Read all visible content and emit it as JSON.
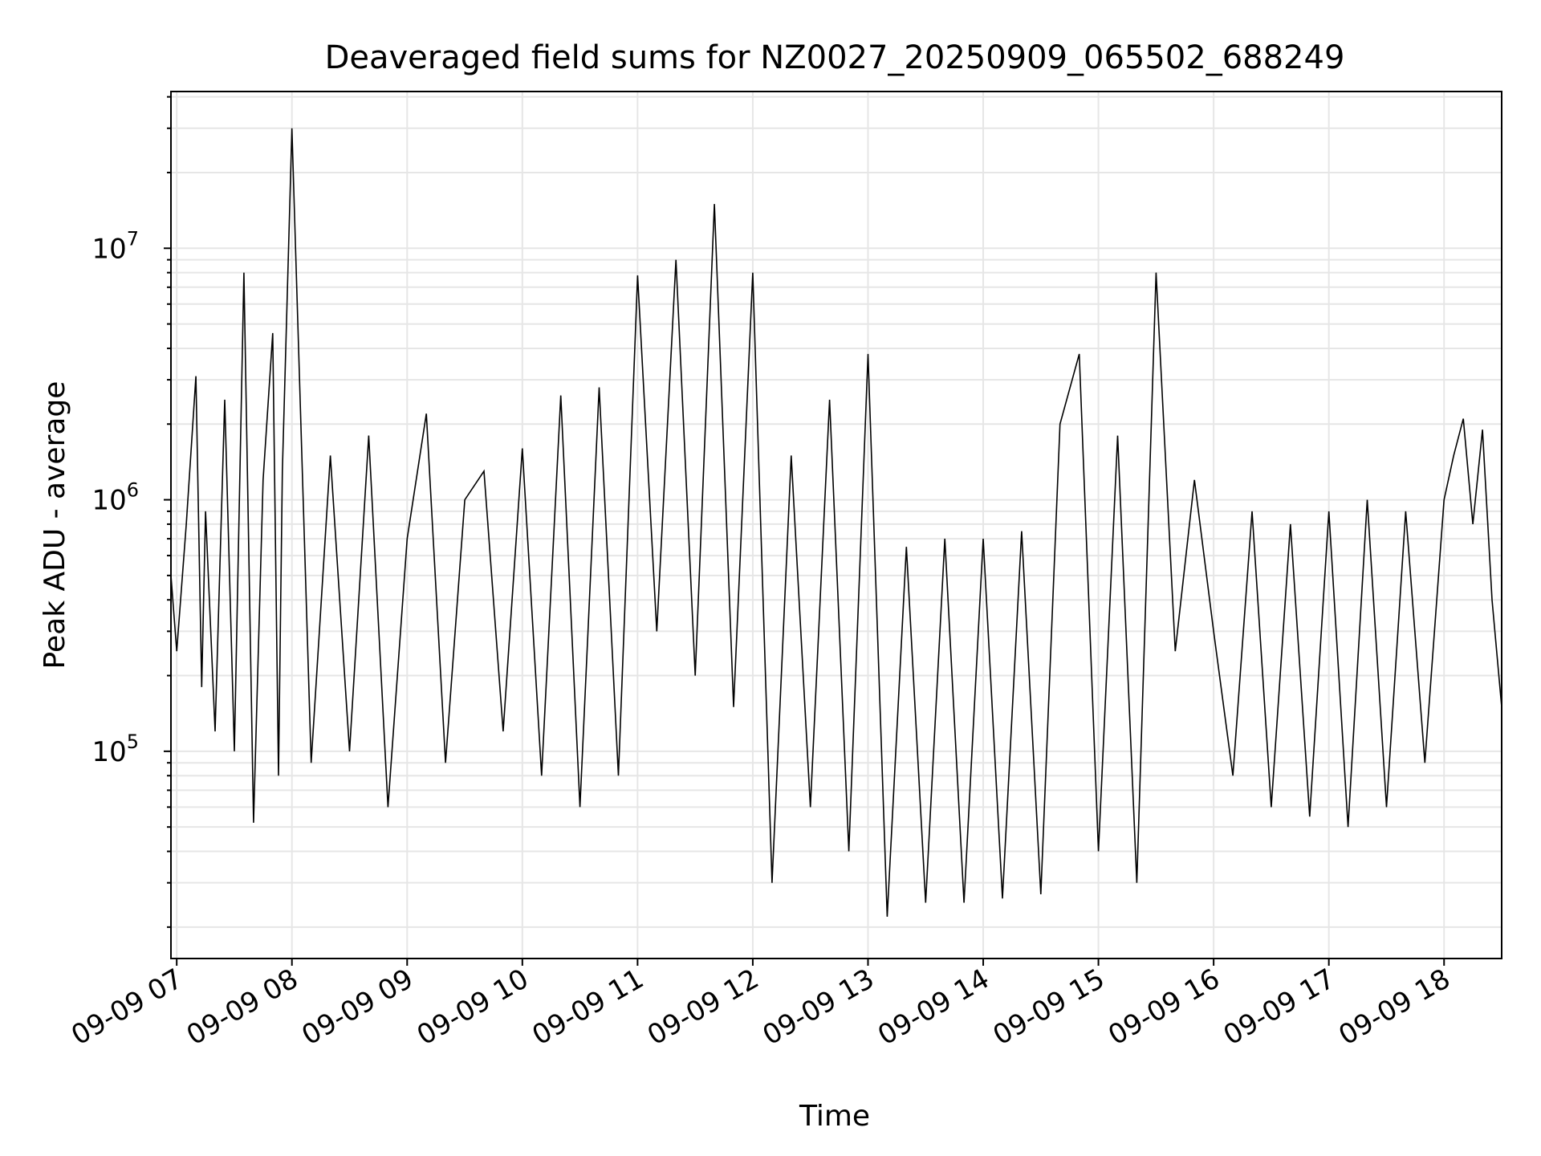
{
  "chart_data": {
    "type": "line",
    "title": "Deaveraged field sums for NZ0027_20250909_065502_688249",
    "xlabel": "Time",
    "ylabel": "Peak ADU - average",
    "yscale": "log",
    "ylim": [
      15000,
      42000000
    ],
    "xlim": [
      "2025-09-09 06:57",
      "2025-09-09 18:30"
    ],
    "grid": true,
    "line_color": "#000000",
    "x_ticks": [
      {
        "label": "09-09 07",
        "value": "2025-09-09 07:00"
      },
      {
        "label": "09-09 08",
        "value": "2025-09-09 08:00"
      },
      {
        "label": "09-09 09",
        "value": "2025-09-09 09:00"
      },
      {
        "label": "09-09 10",
        "value": "2025-09-09 10:00"
      },
      {
        "label": "09-09 11",
        "value": "2025-09-09 11:00"
      },
      {
        "label": "09-09 12",
        "value": "2025-09-09 12:00"
      },
      {
        "label": "09-09 13",
        "value": "2025-09-09 13:00"
      },
      {
        "label": "09-09 14",
        "value": "2025-09-09 14:00"
      },
      {
        "label": "09-09 15",
        "value": "2025-09-09 15:00"
      },
      {
        "label": "09-09 16",
        "value": "2025-09-09 16:00"
      },
      {
        "label": "09-09 17",
        "value": "2025-09-09 17:00"
      },
      {
        "label": "09-09 18",
        "value": "2025-09-09 18:00"
      }
    ],
    "y_ticks": [
      {
        "label": "10",
        "exp": "5",
        "value": 100000
      },
      {
        "label": "10",
        "exp": "6",
        "value": 1000000
      },
      {
        "label": "10",
        "exp": "7",
        "value": 10000000
      }
    ],
    "series": [
      {
        "x": [
          "2025-09-09 06:57",
          "2025-09-09 07:00",
          "2025-09-09 07:05",
          "2025-09-09 07:10",
          "2025-09-09 07:13",
          "2025-09-09 07:15",
          "2025-09-09 07:20",
          "2025-09-09 07:25",
          "2025-09-09 07:30",
          "2025-09-09 07:35",
          "2025-09-09 07:40",
          "2025-09-09 07:45",
          "2025-09-09 07:50",
          "2025-09-09 07:53",
          "2025-09-09 07:55",
          "2025-09-09 08:00",
          "2025-09-09 08:10",
          "2025-09-09 08:20",
          "2025-09-09 08:30",
          "2025-09-09 08:40",
          "2025-09-09 08:50",
          "2025-09-09 09:00",
          "2025-09-09 09:10",
          "2025-09-09 09:20",
          "2025-09-09 09:30",
          "2025-09-09 09:40",
          "2025-09-09 09:50",
          "2025-09-09 10:00",
          "2025-09-09 10:10",
          "2025-09-09 10:20",
          "2025-09-09 10:30",
          "2025-09-09 10:40",
          "2025-09-09 10:50",
          "2025-09-09 11:00",
          "2025-09-09 11:10",
          "2025-09-09 11:20",
          "2025-09-09 11:30",
          "2025-09-09 11:40",
          "2025-09-09 11:50",
          "2025-09-09 12:00",
          "2025-09-09 12:10",
          "2025-09-09 12:20",
          "2025-09-09 12:30",
          "2025-09-09 12:40",
          "2025-09-09 12:50",
          "2025-09-09 13:00",
          "2025-09-09 13:10",
          "2025-09-09 13:20",
          "2025-09-09 13:30",
          "2025-09-09 13:40",
          "2025-09-09 13:50",
          "2025-09-09 14:00",
          "2025-09-09 14:10",
          "2025-09-09 14:20",
          "2025-09-09 14:30",
          "2025-09-09 14:40",
          "2025-09-09 14:50",
          "2025-09-09 15:00",
          "2025-09-09 15:10",
          "2025-09-09 15:20",
          "2025-09-09 15:30",
          "2025-09-09 15:40",
          "2025-09-09 15:50",
          "2025-09-09 16:00",
          "2025-09-09 16:10",
          "2025-09-09 16:20",
          "2025-09-09 16:30",
          "2025-09-09 16:40",
          "2025-09-09 16:50",
          "2025-09-09 17:00",
          "2025-09-09 17:10",
          "2025-09-09 17:20",
          "2025-09-09 17:30",
          "2025-09-09 17:40",
          "2025-09-09 17:50",
          "2025-09-09 18:00",
          "2025-09-09 18:05",
          "2025-09-09 18:10",
          "2025-09-09 18:15",
          "2025-09-09 18:20",
          "2025-09-09 18:25",
          "2025-09-09 18:30"
        ],
        "values": [
          500000,
          250000,
          800000,
          3100000,
          180000,
          900000,
          120000,
          2500000,
          100000,
          8000000,
          52000,
          1200000,
          4600000,
          80000,
          1300000,
          30000000,
          90000,
          1500000,
          100000,
          1800000,
          60000,
          700000,
          2200000,
          90000,
          1000000,
          1300000,
          120000,
          1600000,
          80000,
          2600000,
          60000,
          2800000,
          80000,
          7800000,
          300000,
          9000000,
          200000,
          15000000,
          150000,
          8000000,
          30000,
          1500000,
          60000,
          2500000,
          40000,
          3800000,
          22000,
          650000,
          25000,
          700000,
          25000,
          700000,
          26000,
          750000,
          27000,
          2000000,
          3800000,
          40000,
          1800000,
          30000,
          8000000,
          250000,
          1200000,
          300000,
          80000,
          900000,
          60000,
          800000,
          55000,
          900000,
          50000,
          1000000,
          60000,
          900000,
          90000,
          1000000,
          1500000,
          2100000,
          800000,
          1900000,
          400000,
          150000
        ]
      }
    ]
  }
}
